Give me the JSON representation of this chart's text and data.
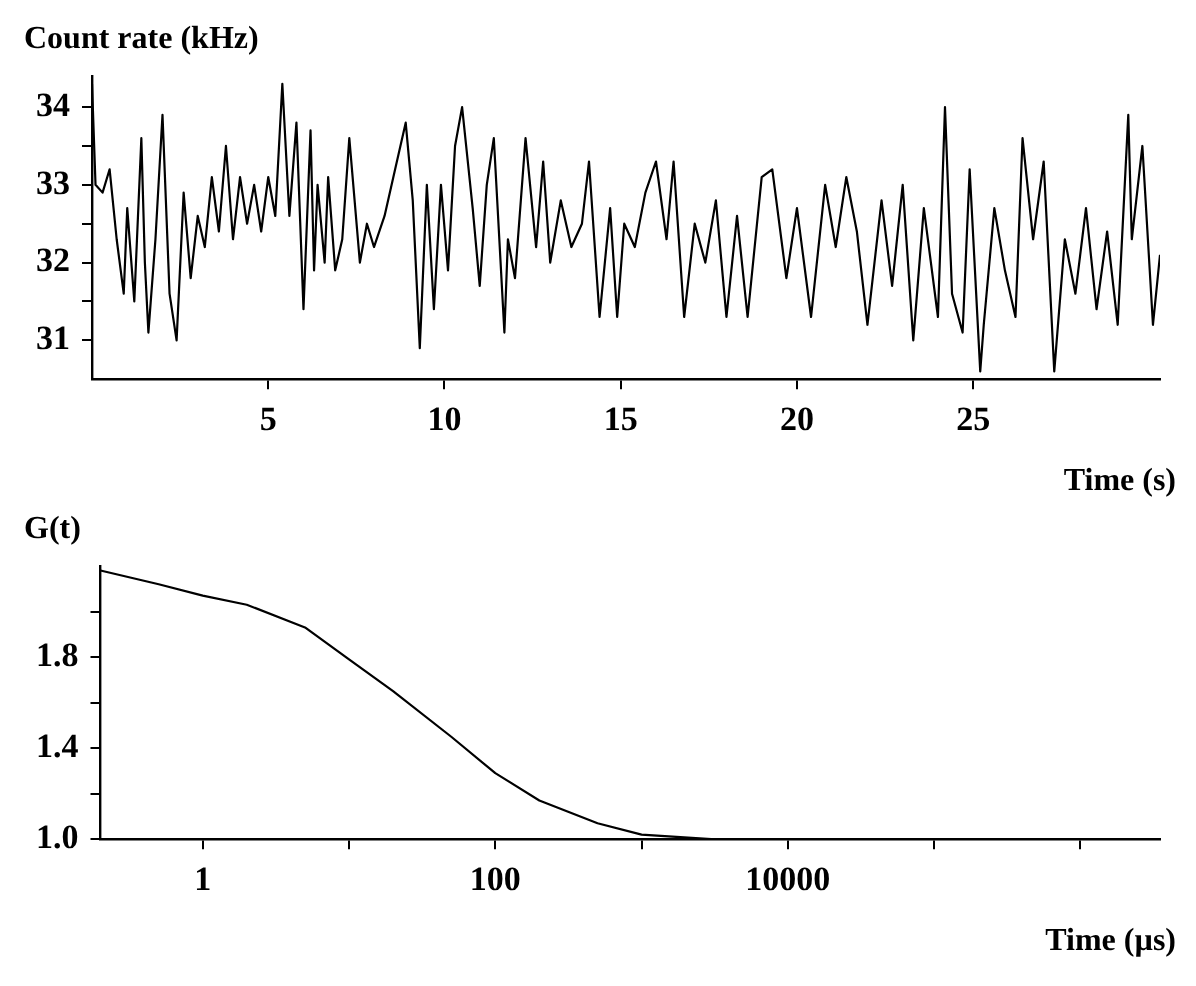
{
  "chart_data": [
    {
      "type": "line",
      "ylabel": "Count rate (kHz)",
      "xlabel": "Time (s)",
      "xlim": [
        0,
        30.3
      ],
      "ylim": [
        30.5,
        34.4
      ],
      "marker": "none",
      "line_style": "solid",
      "grid": false,
      "legend": false,
      "xticks": [
        5,
        10,
        15,
        20,
        25
      ],
      "yticks": [
        31,
        {
          "value": 31.5,
          "label": null
        },
        32,
        {
          "value": 32.5,
          "label": null
        },
        33,
        {
          "value": 33.5,
          "label": null
        },
        34
      ],
      "series": [
        {
          "color": "#000000",
          "x": [
            0,
            0.1,
            0.3,
            0.5,
            0.7,
            0.9,
            1.0,
            1.2,
            1.4,
            1.5,
            1.6,
            1.8,
            2.0,
            2.2,
            2.4,
            2.6,
            2.8,
            3.0,
            3.2,
            3.4,
            3.6,
            3.8,
            4.0,
            4.2,
            4.4,
            4.6,
            4.8,
            5.0,
            5.2,
            5.4,
            5.6,
            5.8,
            6.0,
            6.2,
            6.3,
            6.4,
            6.6,
            6.7,
            6.9,
            7.1,
            7.3,
            7.6,
            7.8,
            8.0,
            8.3,
            8.6,
            8.9,
            9.1,
            9.3,
            9.5,
            9.7,
            9.9,
            10.1,
            10.3,
            10.5,
            10.8,
            11.0,
            11.2,
            11.4,
            11.7,
            11.8,
            12.0,
            12.3,
            12.6,
            12.8,
            13.0,
            13.3,
            13.6,
            13.9,
            14.1,
            14.4,
            14.7,
            14.9,
            15.1,
            15.4,
            15.7,
            16.0,
            16.3,
            16.5,
            16.8,
            17.1,
            17.4,
            17.7,
            18.0,
            18.3,
            18.6,
            19.0,
            19.3,
            19.7,
            20.0,
            20.4,
            20.8,
            21.1,
            21.4,
            21.7,
            22.0,
            22.4,
            22.7,
            23.0,
            23.3,
            23.6,
            24.0,
            24.2,
            24.4,
            24.7,
            24.9,
            25.2,
            25.3,
            25.6,
            25.9,
            26.2,
            26.4,
            26.7,
            27.0,
            27.3,
            27.6,
            27.9,
            28.2,
            28.5,
            28.8,
            29.1,
            29.4,
            29.5,
            29.8,
            30.1,
            30.3
          ],
          "values": [
            34.3,
            33.0,
            32.9,
            33.2,
            32.3,
            31.6,
            32.7,
            31.5,
            33.6,
            32.0,
            31.1,
            32.3,
            33.9,
            31.6,
            31.0,
            32.9,
            31.8,
            32.6,
            32.2,
            33.1,
            32.4,
            33.5,
            32.3,
            33.1,
            32.5,
            33.0,
            32.4,
            33.1,
            32.6,
            34.3,
            32.6,
            33.8,
            31.4,
            33.7,
            31.9,
            33.0,
            32.0,
            33.1,
            31.9,
            32.3,
            33.6,
            32.0,
            32.5,
            32.2,
            32.6,
            33.2,
            33.8,
            32.8,
            30.9,
            33.0,
            31.4,
            33.0,
            31.9,
            33.5,
            34.0,
            32.7,
            31.7,
            33.0,
            33.6,
            31.1,
            32.3,
            31.8,
            33.6,
            32.2,
            33.3,
            32.0,
            32.8,
            32.2,
            32.5,
            33.3,
            31.3,
            32.7,
            31.3,
            32.5,
            32.2,
            32.9,
            33.3,
            32.3,
            33.3,
            31.3,
            32.5,
            32.0,
            32.8,
            31.3,
            32.6,
            31.3,
            33.1,
            33.2,
            31.8,
            32.7,
            31.3,
            33.0,
            32.2,
            33.1,
            32.4,
            31.2,
            32.8,
            31.7,
            33.0,
            31.0,
            32.7,
            31.3,
            34.0,
            31.6,
            31.1,
            33.2,
            30.6,
            31.2,
            32.7,
            31.9,
            31.3,
            33.6,
            32.3,
            33.3,
            30.6,
            32.3,
            31.6,
            32.7,
            31.4,
            32.4,
            31.2,
            33.9,
            32.3,
            33.5,
            31.2,
            32.1
          ]
        }
      ]
    },
    {
      "type": "line",
      "ylabel": "G(t)",
      "xlabel": "Time (µs)",
      "log": "x",
      "xlim": [
        0.2,
        3500000
      ],
      "ylim": [
        1.0,
        2.2
      ],
      "marker": "none",
      "line_style": "solid",
      "grid": false,
      "legend": false,
      "xticks": [
        1,
        {
          "value": 10,
          "label": null
        },
        100,
        {
          "value": 1000,
          "label": null
        },
        10000,
        {
          "value": 100000,
          "label": null
        },
        {
          "value": 1000000,
          "label": null
        }
      ],
      "yticks": [
        "1.0",
        {
          "value": 1.2,
          "label": null
        },
        1.4,
        {
          "value": 1.6,
          "label": null
        },
        1.8,
        {
          "value": 2.0,
          "label": null
        }
      ],
      "series": [
        {
          "color": "#000000",
          "x": [
            0.2,
            0.5,
            1,
            2,
            5,
            10,
            20,
            50,
            100,
            200,
            500,
            1000,
            3000,
            10000,
            100000,
            3500000
          ],
          "values": [
            2.18,
            2.12,
            2.07,
            2.03,
            1.93,
            1.79,
            1.65,
            1.45,
            1.29,
            1.17,
            1.07,
            1.02,
            1.0,
            1.0,
            1.0,
            1.0
          ]
        }
      ]
    }
  ]
}
